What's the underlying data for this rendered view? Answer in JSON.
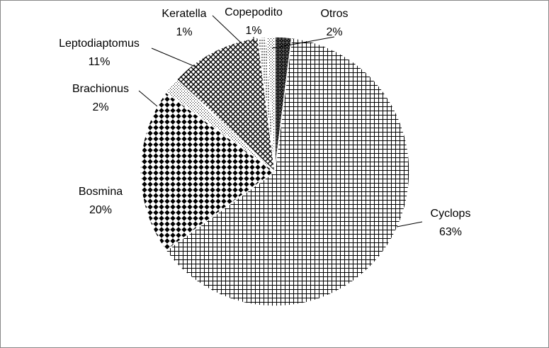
{
  "chart_data": {
    "type": "pie",
    "slices": [
      {
        "label": "Otros",
        "value": 2,
        "value_label": "2%",
        "pattern": "dense-dark-diamond"
      },
      {
        "label": "Cyclops",
        "value": 63,
        "value_label": "63%",
        "pattern": "square-grid"
      },
      {
        "label": "Bosmina",
        "value": 20,
        "value_label": "20%",
        "pattern": "dark-diamond"
      },
      {
        "label": "Brachionus",
        "value": 2,
        "value_label": "2%",
        "pattern": "light-dots"
      },
      {
        "label": "Leptodiaptomus",
        "value": 11,
        "value_label": "11%",
        "pattern": "diagonal-grid"
      },
      {
        "label": "Keratella",
        "value": 1,
        "value_label": "1%",
        "pattern": "vertical-dashes"
      },
      {
        "label": "Copepodito",
        "value": 1,
        "value_label": "1%",
        "pattern": "light-dots"
      }
    ],
    "legend": "none",
    "data_labels": "category and percentage, outside with leader lines"
  }
}
